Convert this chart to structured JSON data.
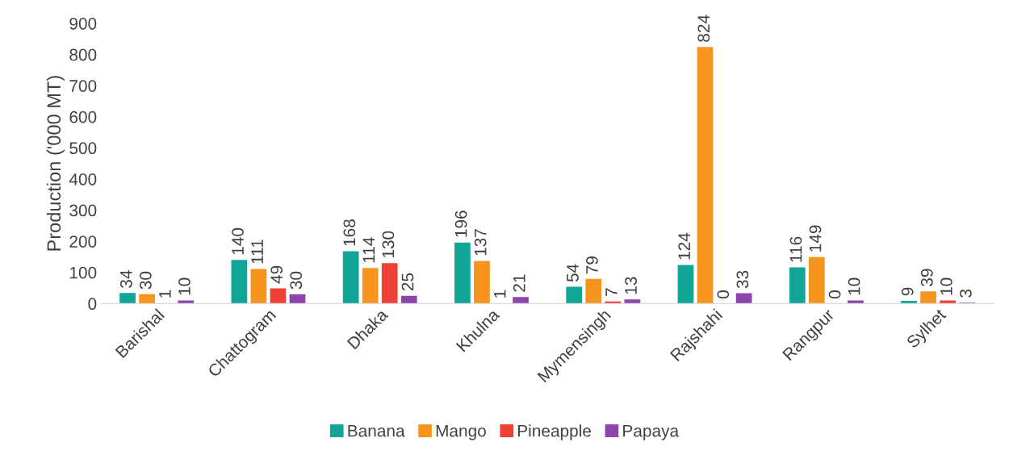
{
  "chart_data": {
    "type": "bar",
    "ylabel": "Production ('000 MT)",
    "categories": [
      "Barishal",
      "Chattogram",
      "Dhaka",
      "Khulna",
      "Mymensingh",
      "Rajshahi",
      "Rangpur",
      "Sylhet"
    ],
    "series": [
      {
        "name": "Banana",
        "color": "#10a597",
        "values": [
          34,
          140,
          168,
          196,
          54,
          124,
          116,
          9
        ]
      },
      {
        "name": "Mango",
        "color": "#f7941d",
        "values": [
          30,
          111,
          114,
          137,
          79,
          824,
          149,
          39
        ]
      },
      {
        "name": "Pineapple",
        "color": "#ef4136",
        "values": [
          1,
          49,
          130,
          1,
          7,
          0,
          0,
          10
        ]
      },
      {
        "name": "Papaya",
        "color": "#8e44ad",
        "values": [
          10,
          30,
          25,
          21,
          13,
          33,
          10,
          3
        ]
      }
    ],
    "ylim": [
      0,
      900
    ],
    "yticks": [
      0,
      100,
      200,
      300,
      400,
      500,
      600,
      700,
      800,
      900
    ],
    "grid": false,
    "legend": "bottom",
    "data_labels": true
  }
}
